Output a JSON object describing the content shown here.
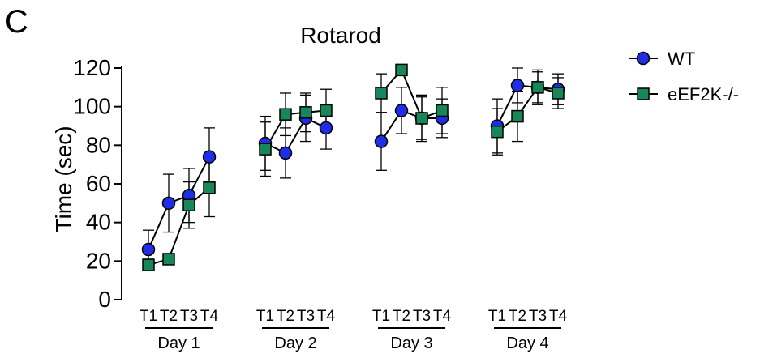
{
  "panel_label": "C",
  "chart_data": {
    "type": "line",
    "title": "Rotarod",
    "ylabel": "Time (sec)",
    "xlabel": "",
    "ylim": [
      0,
      120
    ],
    "yticks": [
      0,
      20,
      40,
      60,
      80,
      100,
      120
    ],
    "grid": false,
    "legend_position": "top-right",
    "groups": [
      {
        "label": "Day 1",
        "trials": [
          "T1",
          "T2",
          "T3",
          "T4"
        ]
      },
      {
        "label": "Day 2",
        "trials": [
          "T1",
          "T2",
          "T3",
          "T4"
        ]
      },
      {
        "label": "Day 3",
        "trials": [
          "T1",
          "T2",
          "T3",
          "T4"
        ]
      },
      {
        "label": "Day 4",
        "trials": [
          "T1",
          "T2",
          "T3",
          "T4"
        ]
      }
    ],
    "series": [
      {
        "name": "WT",
        "marker": "circle",
        "color": "#1f2ee6",
        "values": [
          26,
          50,
          54,
          74,
          81,
          76,
          94,
          89,
          82,
          98,
          94,
          94,
          90,
          111,
          110,
          109
        ],
        "errors": [
          10,
          15,
          14,
          15,
          14,
          13,
          12,
          11,
          15,
          12,
          11,
          10,
          14,
          9,
          8,
          8
        ]
      },
      {
        "name": "eEF2K-/-",
        "marker": "square",
        "color": "#17875a",
        "values": [
          18,
          21,
          49,
          58,
          78,
          96,
          97,
          98,
          107,
          119,
          94,
          98,
          87,
          95,
          110,
          107
        ],
        "errors": [
          3,
          2,
          12,
          15,
          14,
          11,
          10,
          11,
          10,
          2,
          12,
          12,
          12,
          13,
          9,
          8
        ]
      }
    ]
  }
}
